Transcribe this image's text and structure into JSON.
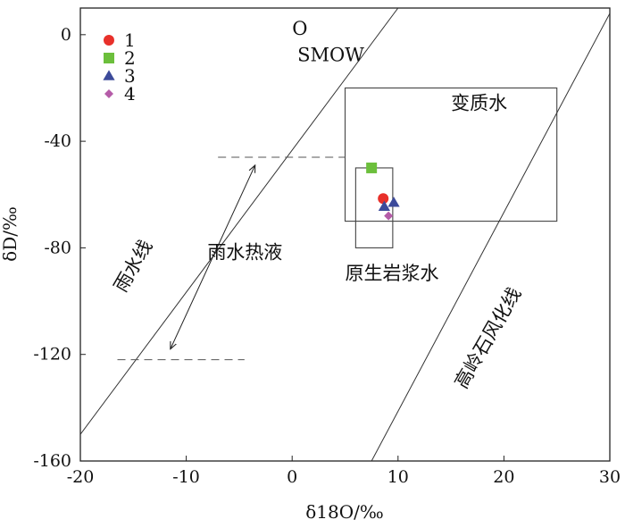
{
  "chart_data": {
    "type": "scatter",
    "xlabel": "δ18O/‰",
    "ylabel": "δD/‰",
    "xlim": [
      -20,
      30
    ],
    "ylim": [
      -160,
      10
    ],
    "xticks": [
      "-20",
      "-10",
      "0",
      "10",
      "20",
      "30"
    ],
    "yticks": [
      "0",
      "-40",
      "-80",
      "-120",
      "-160"
    ],
    "xtick_values": [
      -20,
      -10,
      0,
      10,
      20,
      30
    ],
    "ytick_values": [
      0,
      -40,
      -80,
      -120,
      -160
    ],
    "grid": false,
    "legend_position": "top-left",
    "series": [
      {
        "name": "1",
        "marker": "circle",
        "color": "#e8302a",
        "x": [
          8.6
        ],
        "y": [
          -61.5
        ]
      },
      {
        "name": "2",
        "marker": "square",
        "color": "#6cbf3c",
        "x": [
          7.5
        ],
        "y": [
          -50
        ]
      },
      {
        "name": "3",
        "marker": "triangle",
        "color": "#3c4a9a",
        "x": [
          8.7,
          9.6
        ],
        "y": [
          -64.5,
          -63
        ]
      },
      {
        "name": "4",
        "marker": "diamond",
        "color": "#b55ca8",
        "x": [
          9.1
        ],
        "y": [
          -68
        ]
      }
    ],
    "lines": [
      {
        "label": "雨水线",
        "from": [
          -20,
          -150
        ],
        "to": [
          10,
          10
        ]
      },
      {
        "label": "高岭石风化线",
        "from": [
          7.5,
          -160
        ],
        "to": [
          30,
          8
        ]
      }
    ],
    "regions": [
      {
        "label": "变质水",
        "x": [
          5,
          25
        ],
        "y": [
          -70,
          -20
        ]
      },
      {
        "label": "原生岩浆水",
        "x": [
          6,
          9.5
        ],
        "y": [
          -80,
          -50
        ]
      }
    ],
    "dashed_lines": [
      {
        "from": [
          -7,
          -46
        ],
        "to": [
          5,
          -46
        ]
      },
      {
        "from": [
          -16.5,
          -122
        ],
        "to": [
          -4.5,
          -122
        ]
      }
    ],
    "annotations": [
      {
        "text": "O",
        "x": 0,
        "y": 0
      },
      {
        "text": "SMOW",
        "x": 0.5,
        "y": -10
      },
      {
        "text": "变质水",
        "x": 15,
        "y": -28
      },
      {
        "text": "雨水热液",
        "x": -8,
        "y": -84
      },
      {
        "text": "原生岩浆水",
        "x": 5,
        "y": -92
      }
    ],
    "arrow": {
      "from": [
        -3.5,
        -49
      ],
      "to": [
        -11.5,
        -118
      ]
    },
    "rotated_labels": [
      {
        "text": "雨水线",
        "x": -14.5,
        "y": -88
      },
      {
        "text": "高岭石风化线",
        "x": 19,
        "y": -115
      }
    ]
  }
}
